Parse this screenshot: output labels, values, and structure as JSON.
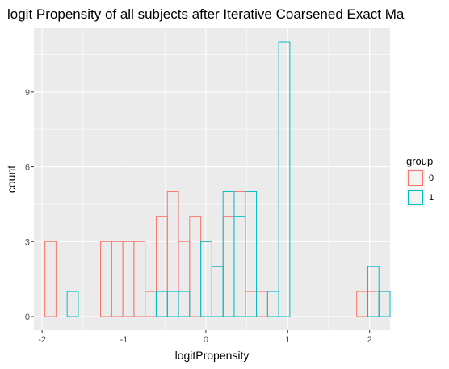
{
  "chart_data": {
    "type": "bar",
    "title": "logit Propensity of all subjects after Iterative Coarsened Exact Ma",
    "xlabel": "logitPropensity",
    "ylabel": "count",
    "xlim": [
      -2.1,
      2.25
    ],
    "ylim": [
      -0.55,
      11.55
    ],
    "x_ticks": [
      -2,
      -1,
      0,
      1,
      2
    ],
    "x_tick_labels": [
      "-2",
      "-1",
      "0",
      "1",
      "2"
    ],
    "y_ticks": [
      0,
      3,
      6,
      9
    ],
    "y_tick_labels": [
      "0",
      "3",
      "6",
      "9"
    ],
    "bin_width": 0.136,
    "bin_start": -1.966,
    "grid": true,
    "legend": {
      "title": "group",
      "placement": "right"
    },
    "series": [
      {
        "name": "0",
        "color": "#F8766D",
        "values": [
          3,
          0,
          0,
          0,
          0,
          3,
          3,
          3,
          3,
          1,
          4,
          5,
          3,
          4,
          3,
          2,
          4,
          5,
          1,
          1,
          0,
          0,
          0,
          0,
          0,
          0,
          0,
          0,
          1,
          1,
          1
        ]
      },
      {
        "name": "1",
        "color": "#00BFC4",
        "values": [
          0,
          0,
          1,
          0,
          0,
          0,
          0,
          0,
          0,
          0,
          1,
          1,
          1,
          0,
          3,
          2,
          5,
          4,
          5,
          0,
          1,
          11,
          0,
          0,
          0,
          0,
          0,
          0,
          0,
          2,
          1
        ]
      }
    ]
  }
}
